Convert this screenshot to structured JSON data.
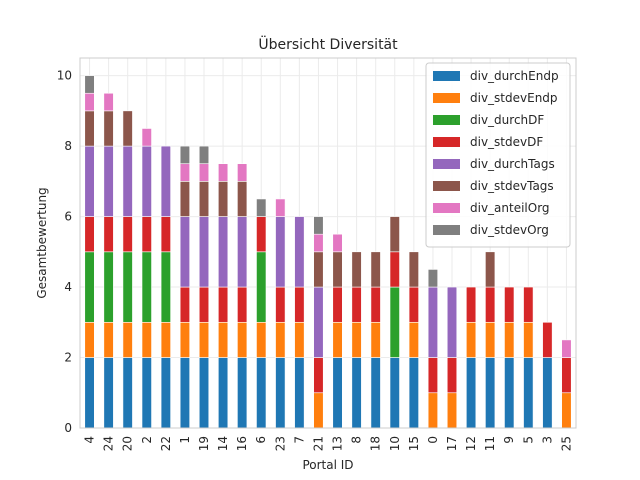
{
  "chart_data": {
    "type": "bar",
    "stacked": true,
    "title": "Übersicht Diversität",
    "xlabel": "Portal ID",
    "ylabel": "Gesamtbewertung",
    "ylim": [
      0,
      10.5
    ],
    "yticks": [
      "0",
      "2",
      "4",
      "6",
      "8",
      "10"
    ],
    "grid": true,
    "legend_position": "top-right",
    "categories": [
      "4",
      "24",
      "20",
      "2",
      "22",
      "1",
      "19",
      "14",
      "16",
      "6",
      "23",
      "7",
      "21",
      "13",
      "8",
      "18",
      "10",
      "15",
      "0",
      "17",
      "12",
      "11",
      "9",
      "5",
      "3",
      "25"
    ],
    "series": [
      {
        "name": "div_durchEndp",
        "color": "#1f77b4",
        "values": [
          2,
          2,
          2,
          2,
          2,
          2,
          2,
          2,
          2,
          2,
          2,
          2,
          0,
          2,
          2,
          2,
          2,
          2,
          0,
          0,
          2,
          2,
          2,
          2,
          2,
          0
        ]
      },
      {
        "name": "div_stdevEndp",
        "color": "#ff7f0e",
        "values": [
          1,
          1,
          1,
          1,
          1,
          1,
          1,
          1,
          1,
          1,
          1,
          1,
          1,
          1,
          1,
          1,
          0,
          1,
          1,
          1,
          1,
          1,
          1,
          1,
          0,
          1
        ]
      },
      {
        "name": "div_durchDF",
        "color": "#2ca02c",
        "values": [
          2,
          2,
          2,
          2,
          2,
          0,
          0,
          0,
          0,
          2,
          0,
          0,
          0,
          0,
          0,
          0,
          2,
          0,
          0,
          0,
          0,
          0,
          0,
          0,
          0,
          0
        ]
      },
      {
        "name": "div_stdevDF",
        "color": "#d62728",
        "values": [
          1,
          1,
          1,
          1,
          1,
          1,
          1,
          1,
          1,
          1,
          1,
          1,
          1,
          1,
          1,
          1,
          1,
          1,
          1,
          1,
          1,
          1,
          1,
          1,
          1,
          1
        ]
      },
      {
        "name": "div_durchTags",
        "color": "#9467bd",
        "values": [
          2,
          2,
          2,
          2,
          2,
          2,
          2,
          2,
          2,
          0,
          2,
          2,
          2,
          0,
          0,
          0,
          0,
          0,
          2,
          2,
          0,
          0,
          0,
          0,
          0,
          0
        ]
      },
      {
        "name": "div_stdevTags",
        "color": "#8c564b",
        "values": [
          1,
          1,
          1,
          0,
          0,
          1,
          1,
          1,
          1,
          0,
          0,
          0,
          1,
          1,
          1,
          1,
          1,
          1,
          0,
          0,
          0,
          1,
          0,
          0,
          0,
          0
        ]
      },
      {
        "name": "div_anteilOrg",
        "color": "#e377c2",
        "values": [
          0.5,
          0.5,
          0,
          0.5,
          0,
          0.5,
          0.5,
          0.5,
          0.5,
          0,
          0.5,
          0,
          0.5,
          0.5,
          0,
          0,
          0,
          0,
          0,
          0,
          0,
          0,
          0,
          0,
          0,
          0.5
        ]
      },
      {
        "name": "div_stdevOrg",
        "color": "#7f7f7f",
        "values": [
          0.5,
          0,
          0,
          0,
          0,
          0.5,
          0.5,
          0,
          0,
          0.5,
          0,
          0,
          0.5,
          0,
          0,
          0,
          0,
          0,
          0.5,
          0,
          0,
          0,
          0,
          0,
          0,
          0
        ]
      }
    ]
  }
}
